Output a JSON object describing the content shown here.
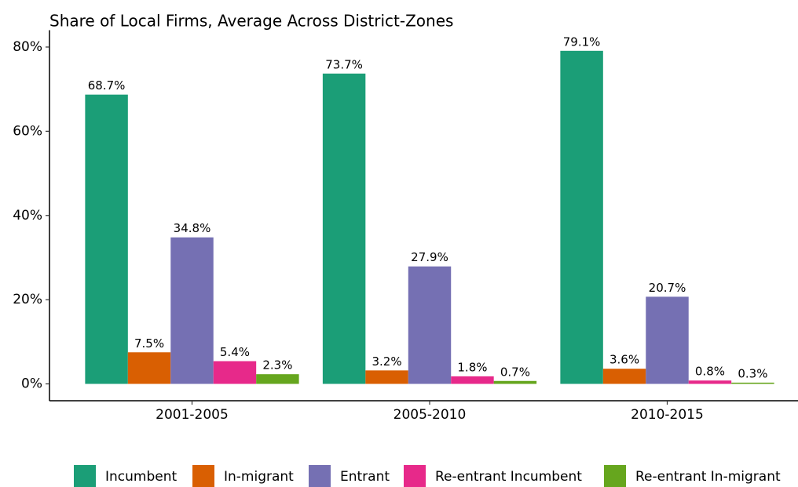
{
  "chart_data": {
    "type": "bar",
    "title": "Share of Local Firms, Average Across District-Zones",
    "categories": [
      "2001-2005",
      "2005-2010",
      "2010-2015"
    ],
    "series": [
      {
        "name": "Incumbent",
        "color": "#1b9e77",
        "values": [
          68.7,
          73.7,
          79.1
        ],
        "value_labels": [
          "68.7%",
          "73.7%",
          "79.1%"
        ]
      },
      {
        "name": "In-migrant",
        "color": "#d95f02",
        "values": [
          7.5,
          3.2,
          3.6
        ],
        "value_labels": [
          "7.5%",
          "3.2%",
          "3.6%"
        ]
      },
      {
        "name": "Entrant",
        "color": "#7570b3",
        "values": [
          34.8,
          27.9,
          20.7
        ],
        "value_labels": [
          "34.8%",
          "27.9%",
          "20.7%"
        ]
      },
      {
        "name": "Re-entrant Incumbent",
        "color": "#e7298a",
        "values": [
          5.4,
          1.8,
          0.8
        ],
        "value_labels": [
          "5.4%",
          "1.8%",
          "0.8%"
        ]
      },
      {
        "name": "Re-entrant In-migrant",
        "color": "#66a61e",
        "values": [
          2.3,
          0.7,
          0.3
        ],
        "value_labels": [
          "2.3%",
          "0.7%",
          "0.3%"
        ]
      }
    ],
    "ylim": [
      -4,
      84
    ],
    "yticks": [
      {
        "value": 0,
        "label": "0%"
      },
      {
        "value": 20,
        "label": "20%"
      },
      {
        "value": 40,
        "label": "40%"
      },
      {
        "value": 60,
        "label": "60%"
      },
      {
        "value": 80,
        "label": "80%"
      }
    ],
    "grid": false,
    "legend": "bottom"
  }
}
